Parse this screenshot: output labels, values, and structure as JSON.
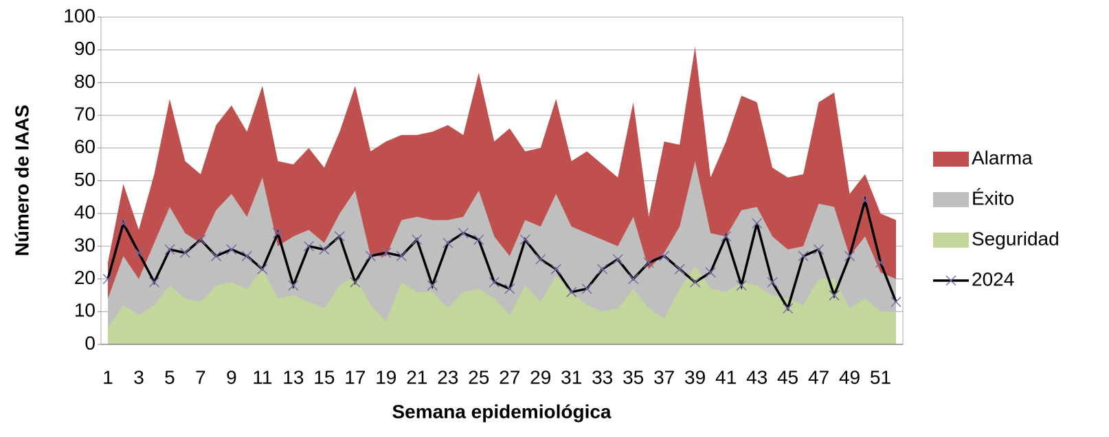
{
  "chart_data": {
    "type": "area",
    "x_label": "Semana epidemiológica",
    "y_label": "Número de IAAS",
    "categories": [
      "1",
      null,
      "3",
      null,
      "5",
      null,
      "7",
      null,
      "9",
      null,
      "11",
      null,
      "13",
      null,
      "15",
      null,
      "17",
      null,
      "19",
      null,
      "21",
      null,
      "23",
      null,
      "25",
      null,
      "27",
      null,
      "29",
      null,
      "31",
      null,
      "33",
      null,
      "35",
      null,
      "37",
      null,
      "39",
      null,
      "41",
      null,
      "43",
      null,
      "45",
      null,
      "47",
      null,
      "49",
      null,
      "51",
      null
    ],
    "series": [
      {
        "name": "Alarma",
        "type": "area",
        "color": "#c0504d",
        "values": [
          25,
          49,
          35,
          52,
          75,
          56,
          52,
          67,
          73,
          65,
          79,
          56,
          55,
          60,
          54,
          65,
          79,
          59,
          62,
          64,
          64,
          65,
          67,
          64,
          83,
          62,
          66,
          59,
          60,
          75,
          56,
          59,
          55,
          51,
          74,
          39,
          62,
          61,
          91,
          51,
          62,
          76,
          74,
          54,
          51,
          52,
          74,
          77,
          46,
          52,
          40,
          38
        ]
      },
      {
        "name": "Éxito",
        "type": "area",
        "color": "#bfbfbf",
        "values": [
          14,
          27,
          20,
          31,
          42,
          34,
          31,
          41,
          46,
          39,
          51,
          30,
          33,
          35,
          31,
          40,
          47,
          27,
          27,
          38,
          39,
          38,
          38,
          39,
          47,
          33,
          27,
          38,
          36,
          46,
          36,
          34,
          32,
          30,
          39,
          23,
          28,
          36,
          56,
          34,
          33,
          41,
          42,
          33,
          29,
          30,
          43,
          42,
          27,
          33,
          22,
          20
        ]
      },
      {
        "name": "Seguridad",
        "type": "area",
        "color": "#c3d69b",
        "values": [
          5,
          12,
          9,
          12,
          18,
          14,
          13,
          18,
          19,
          17,
          23,
          14,
          15,
          13,
          11,
          18,
          21,
          12,
          7,
          19,
          16,
          16,
          11,
          16,
          17,
          14,
          9,
          18,
          13,
          21,
          16,
          12,
          10,
          11,
          17,
          11,
          8,
          17,
          24,
          17,
          16,
          19,
          18,
          15,
          14,
          12,
          20,
          20,
          11,
          14,
          10,
          10
        ]
      },
      {
        "name": "2024",
        "type": "line",
        "color": "#000000",
        "marker_color": "#7b68a6",
        "values": [
          20,
          37,
          28,
          19,
          29,
          28,
          32,
          27,
          29,
          27,
          23,
          34,
          18,
          30,
          29,
          33,
          19,
          27,
          28,
          27,
          32,
          18,
          31,
          34,
          32,
          19,
          17,
          32,
          26,
          23,
          16,
          17,
          23,
          26,
          20,
          25,
          27,
          23,
          19,
          22,
          33,
          18,
          37,
          19,
          11,
          27,
          29,
          15,
          27,
          44,
          25,
          13
        ]
      }
    ],
    "ylim": [
      0,
      100
    ],
    "yticks": [
      0,
      10,
      20,
      30,
      40,
      50,
      60,
      70,
      80,
      90,
      100
    ],
    "grid": true,
    "legend": "right"
  }
}
